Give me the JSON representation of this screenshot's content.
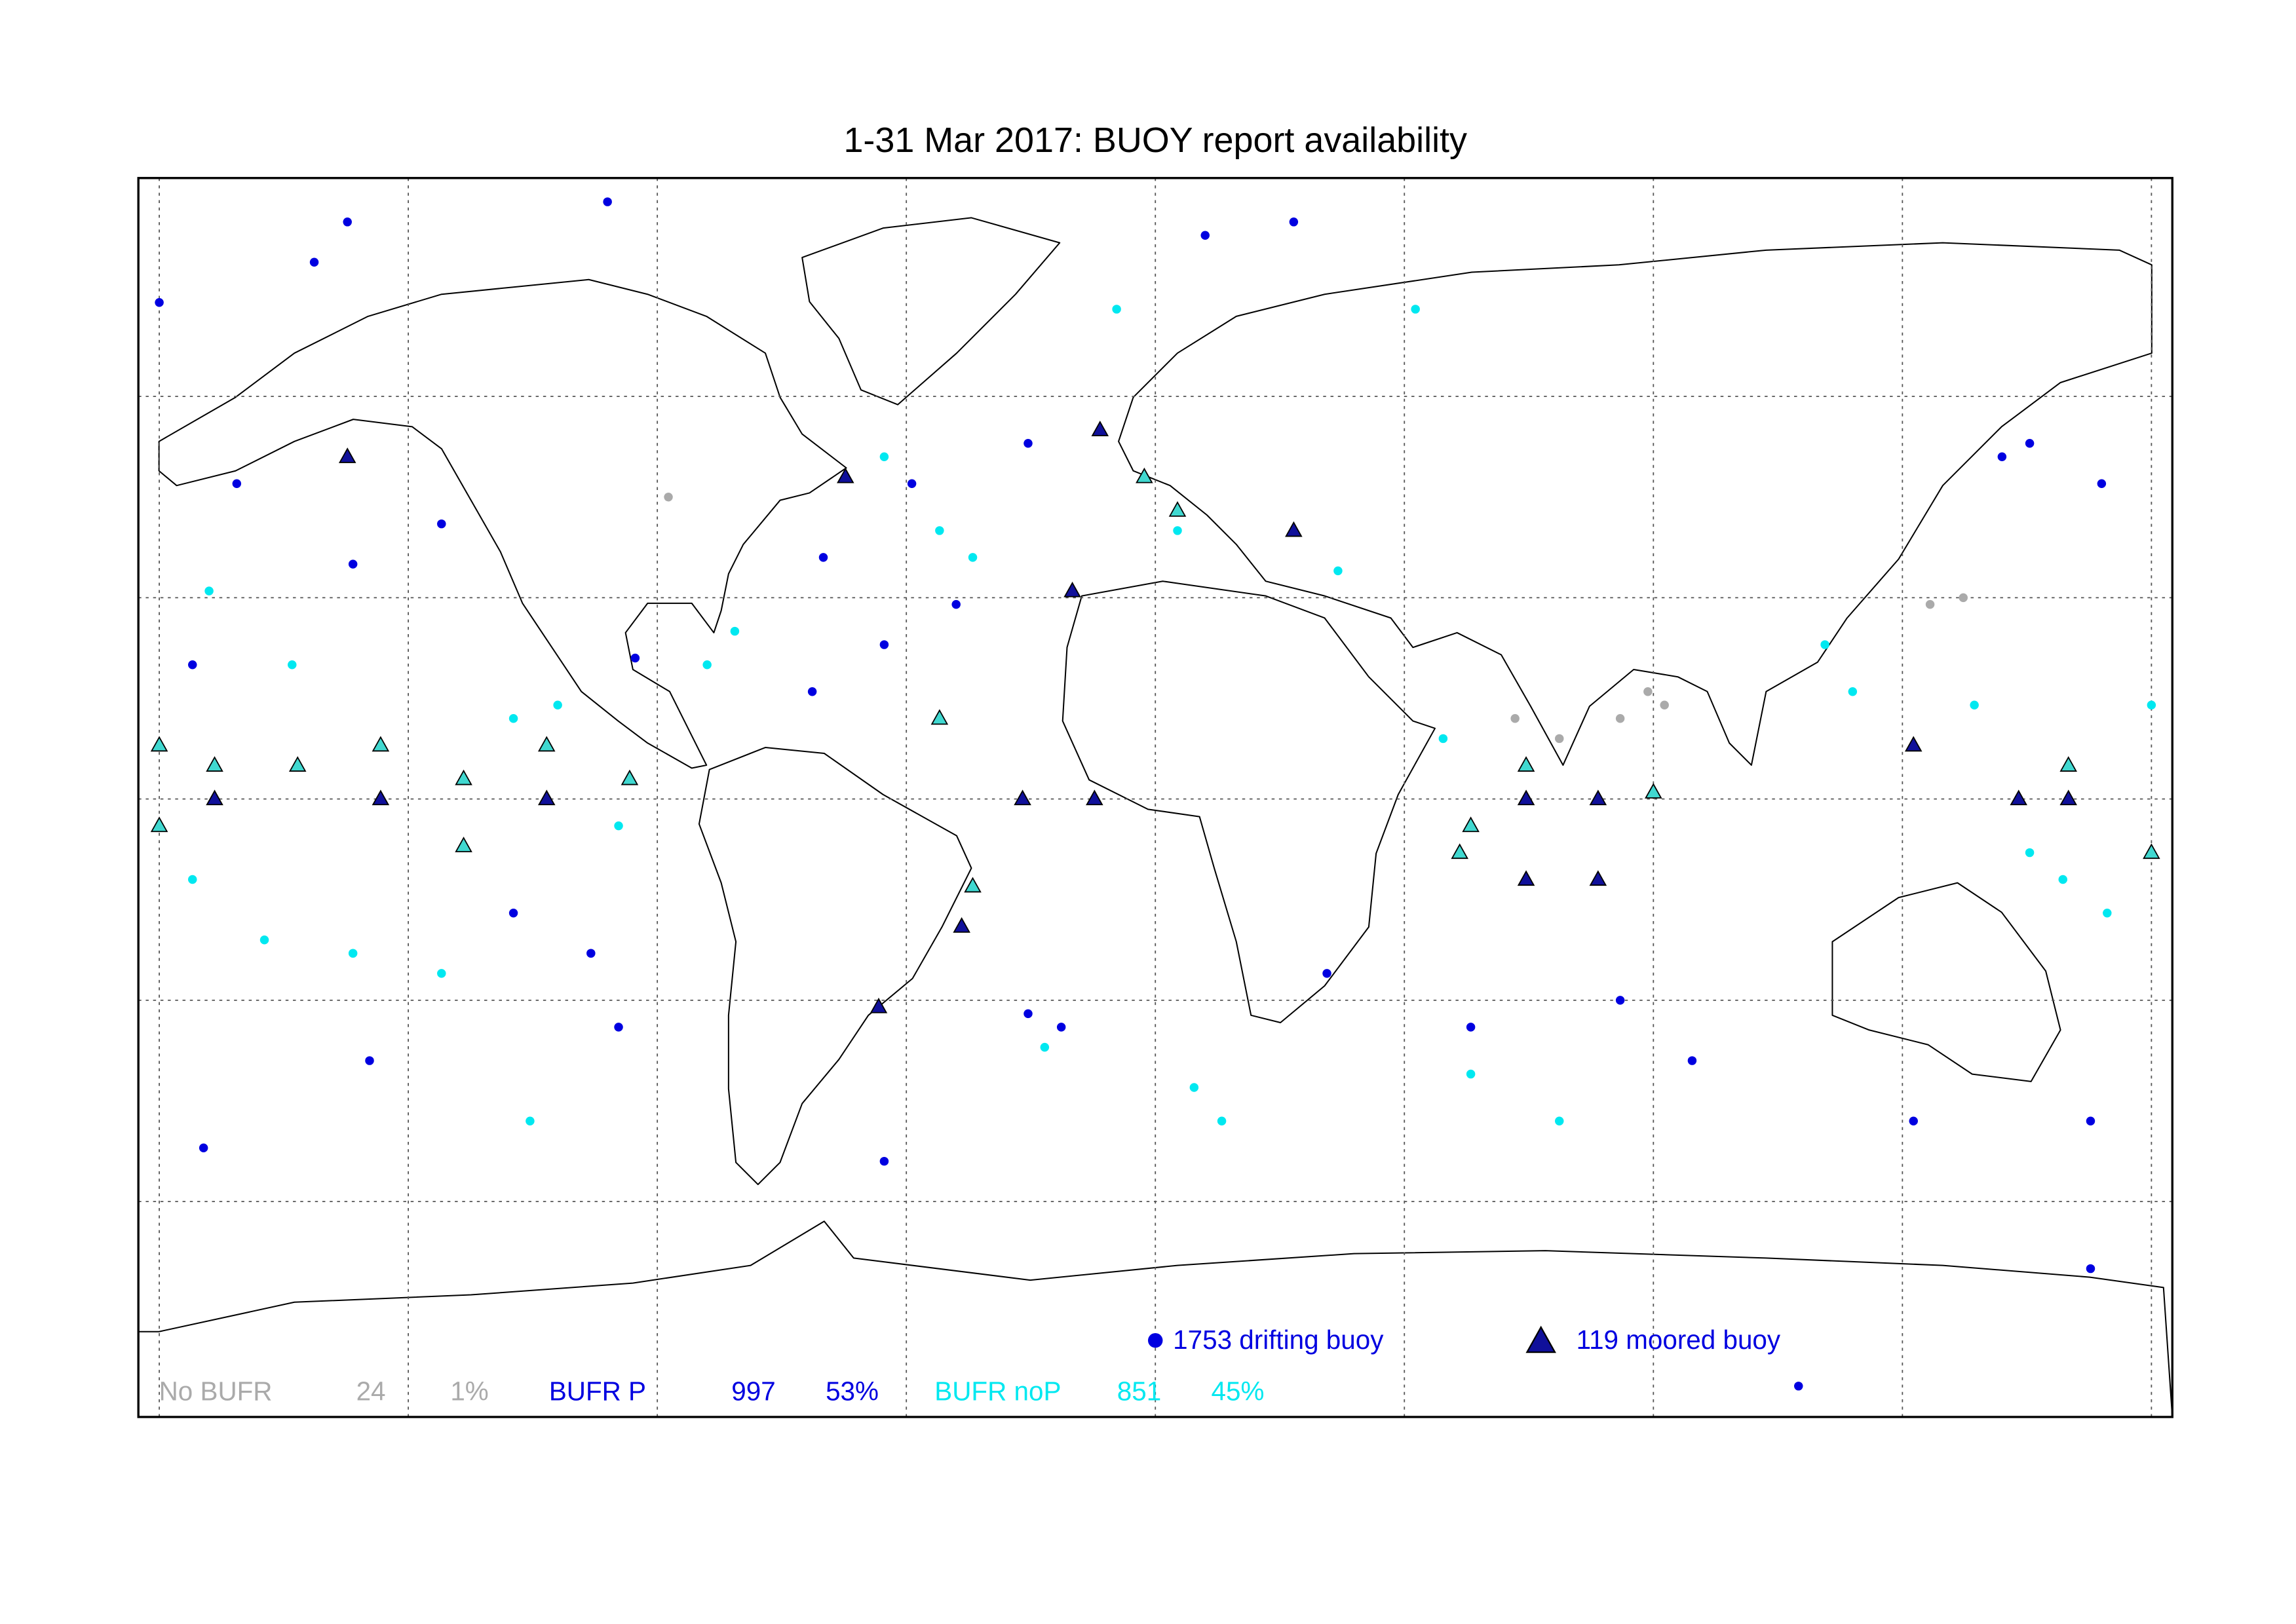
{
  "title": "1-31 Mar 2017: BUOY report availability",
  "legend": {
    "drifting": "1753 drifting buoy",
    "moored": "119 moored buoy",
    "drifting_color": "#0000e0",
    "moored_color": "#10109a"
  },
  "stats": [
    {
      "label": "No BUFR",
      "count": 24,
      "percent": "1%",
      "color": "#aaaaaa",
      "moored_fill": "#aaaaaa",
      "drifting": [
        [
          65,
          12
        ],
        [
          73,
          9
        ],
        [
          84,
          12
        ],
        [
          92,
          14
        ],
        [
          140,
          29
        ],
        [
          146,
          30
        ],
        [
          -88,
          45
        ],
        [
          89,
          16
        ]
      ],
      "moored": []
    },
    {
      "label": "BUFR P",
      "count": 997,
      "percent": "53%",
      "color": "#0000e0",
      "moored_fill": "#10109a",
      "drifting": [
        [
          -146,
          86
        ],
        [
          -99,
          89
        ],
        [
          -152,
          80
        ],
        [
          -180,
          74
        ],
        [
          -166,
          47
        ],
        [
          -129,
          41
        ],
        [
          -145,
          35
        ],
        [
          -174,
          20
        ],
        [
          -94,
          21
        ],
        [
          -60,
          36
        ],
        [
          -44,
          47
        ],
        [
          -36,
          29
        ],
        [
          -23,
          53
        ],
        [
          9,
          84
        ],
        [
          25,
          86
        ],
        [
          -102,
          -23
        ],
        [
          -116,
          -17
        ],
        [
          -97,
          -34
        ],
        [
          -23,
          -32
        ],
        [
          -17,
          -34
        ],
        [
          31,
          -26
        ],
        [
          57,
          -34
        ],
        [
          84,
          -30
        ],
        [
          97,
          -39
        ],
        [
          137,
          -48
        ],
        [
          169,
          -48
        ],
        [
          -172,
          -52
        ],
        [
          -142,
          -39
        ],
        [
          -49,
          -54
        ],
        [
          169,
          -70
        ],
        [
          158,
          53
        ],
        [
          171,
          47
        ],
        [
          153,
          51
        ],
        [
          -62,
          16
        ],
        [
          -49,
          23
        ]
      ],
      "moored": [
        [
          -170,
          0
        ],
        [
          -140,
          0
        ],
        [
          -110,
          0
        ],
        [
          -24,
          0
        ],
        [
          -11,
          0
        ],
        [
          67,
          0
        ],
        [
          80,
          0
        ],
        [
          165,
          0
        ],
        [
          156,
          0
        ],
        [
          -146,
          51
        ],
        [
          -56,
          48
        ],
        [
          -10,
          55
        ],
        [
          25,
          40
        ],
        [
          -50,
          -31
        ],
        [
          -35,
          -19
        ],
        [
          137,
          8
        ],
        [
          -15,
          31
        ],
        [
          67,
          -12
        ],
        [
          80,
          -12
        ]
      ]
    },
    {
      "label": "BUFR noP",
      "count": 851,
      "percent": "45%",
      "color": "#00e8f0",
      "moored_fill": "#40d8d0",
      "drifting": [
        [
          -171,
          31
        ],
        [
          -156,
          20
        ],
        [
          -116,
          12
        ],
        [
          -108,
          14
        ],
        [
          -145,
          -23
        ],
        [
          -129,
          -26
        ],
        [
          -161,
          -21
        ],
        [
          -76,
          25
        ],
        [
          -81,
          20
        ],
        [
          -39,
          40
        ],
        [
          -33,
          36
        ],
        [
          -49,
          51
        ],
        [
          -20,
          -37
        ],
        [
          7,
          -43
        ],
        [
          12,
          -48
        ],
        [
          33,
          34
        ],
        [
          4,
          40
        ],
        [
          121,
          23
        ],
        [
          126,
          16
        ],
        [
          148,
          14
        ],
        [
          164,
          -12
        ],
        [
          172,
          -17
        ],
        [
          158,
          -8
        ],
        [
          73,
          -48
        ],
        [
          57,
          -41
        ],
        [
          -174,
          -12
        ],
        [
          -97,
          -4
        ],
        [
          -113,
          -48
        ],
        [
          52,
          9
        ],
        [
          180,
          14
        ],
        [
          -7,
          73
        ],
        [
          47,
          73
        ]
      ],
      "moored": [
        [
          -180,
          8
        ],
        [
          -180,
          -4
        ],
        [
          -170,
          5
        ],
        [
          -155,
          5
        ],
        [
          -140,
          8
        ],
        [
          -125,
          3
        ],
        [
          -125,
          -7
        ],
        [
          -110,
          8
        ],
        [
          -95,
          3
        ],
        [
          -39,
          12
        ],
        [
          -33,
          -13
        ],
        [
          -2,
          48
        ],
        [
          4,
          43
        ],
        [
          57,
          -4
        ],
        [
          90,
          1
        ],
        [
          165,
          5
        ],
        [
          180,
          -8
        ],
        [
          55,
          -8
        ],
        [
          67,
          5
        ]
      ]
    }
  ]
}
